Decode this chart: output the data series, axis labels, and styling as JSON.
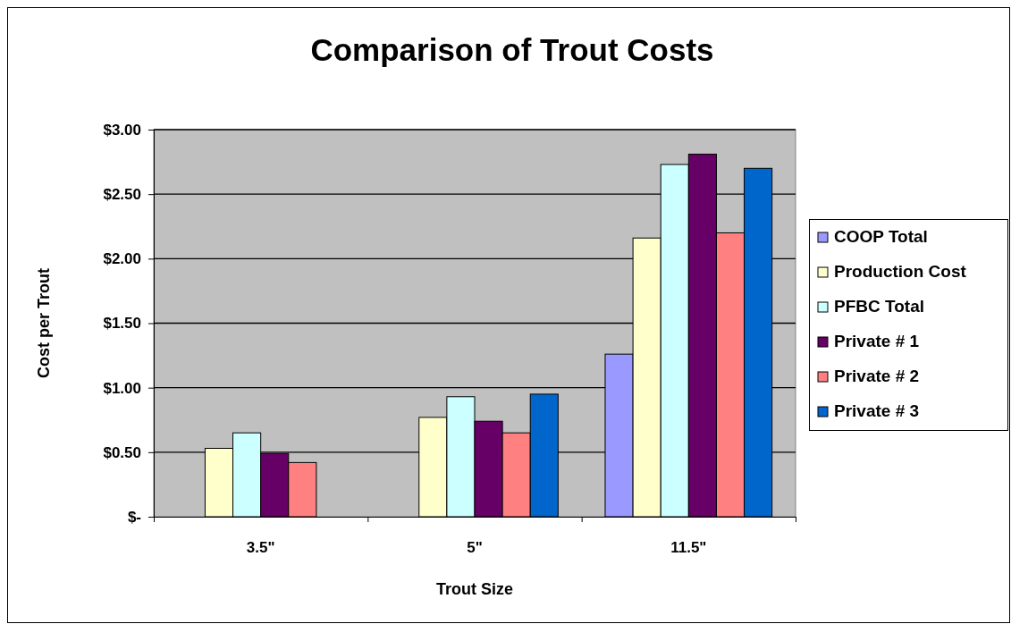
{
  "chart_data": {
    "type": "bar",
    "title": "Comparison of Trout Costs",
    "xlabel": "Trout Size",
    "ylabel": "Cost per Trout",
    "categories": [
      "3.5\"",
      "5\"",
      "11.5\""
    ],
    "series": [
      {
        "name": "COOP Total",
        "color": "#9999ff",
        "values": [
          null,
          null,
          1.26
        ]
      },
      {
        "name": "Production Cost",
        "color": "#ffffcc",
        "values": [
          0.53,
          0.77,
          2.16
        ]
      },
      {
        "name": "PFBC Total",
        "color": "#ccffff",
        "values": [
          0.65,
          0.93,
          2.73
        ]
      },
      {
        "name": "Private # 1",
        "color": "#660066",
        "values": [
          0.49,
          0.74,
          2.81
        ]
      },
      {
        "name": "Private # 2",
        "color": "#ff8080",
        "values": [
          0.42,
          0.65,
          2.2
        ]
      },
      {
        "name": "Private # 3",
        "color": "#0066cc",
        "values": [
          null,
          0.95,
          2.7
        ]
      }
    ],
    "ylim": [
      0,
      3
    ],
    "yticks": [
      {
        "value": 0,
        "label": "$-"
      },
      {
        "value": 0.5,
        "label": "$0.50"
      },
      {
        "value": 1,
        "label": "$1.00"
      },
      {
        "value": 1.5,
        "label": "$1.50"
      },
      {
        "value": 2,
        "label": "$2.00"
      },
      {
        "value": 2.5,
        "label": "$2.50"
      },
      {
        "value": 3,
        "label": "$3.00"
      }
    ],
    "grid": "y",
    "legend": "right"
  }
}
